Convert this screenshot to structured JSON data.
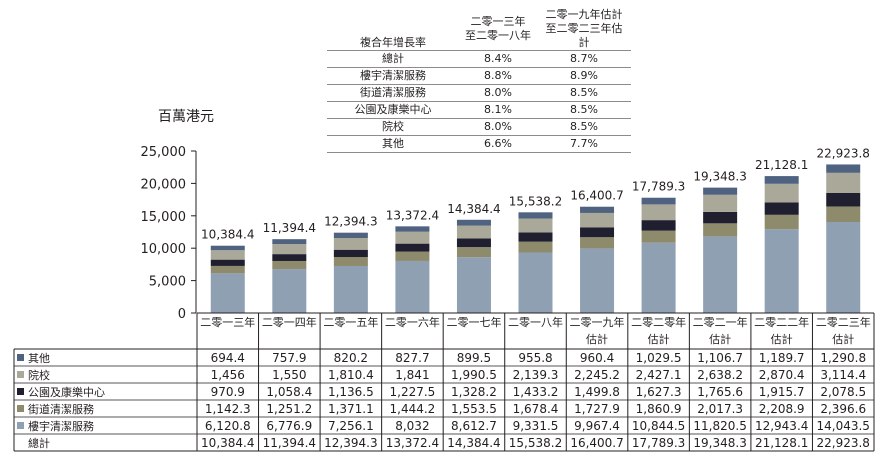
{
  "unit_label": "百萬港元",
  "cagr_table": {
    "header": {
      "label": "複合年增長率",
      "col1": [
        "二零一三年",
        "至二零一八年"
      ],
      "col2": [
        "二零一九年估計",
        "至二零二三年估計"
      ]
    },
    "rows": [
      {
        "label": "總計",
        "v1": "8.4%",
        "v2": "8.7%"
      },
      {
        "label": "樓宇清潔服務",
        "v1": "8.8%",
        "v2": "8.9%"
      },
      {
        "label": "街道清潔服務",
        "v1": "8.0%",
        "v2": "8.5%"
      },
      {
        "label": "公園及康樂中心",
        "v1": "8.1%",
        "v2": "8.5%"
      },
      {
        "label": "院校",
        "v1": "8.0%",
        "v2": "8.5%"
      },
      {
        "label": "其他",
        "v1": "6.6%",
        "v2": "7.7%"
      }
    ]
  },
  "colors": {
    "樓宇清潔服務": "#8fa0b3",
    "街道清潔服務": "#8e8a6c",
    "公園及康樂中心": "#1f1f30",
    "院校": "#aaa999",
    "其他": "#4f6280"
  },
  "chart_data": {
    "type": "bar",
    "stacked": true,
    "categories": [
      [
        "二零一三年"
      ],
      [
        "二零一四年"
      ],
      [
        "二零一五年"
      ],
      [
        "二零一六年"
      ],
      [
        "二零一七年"
      ],
      [
        "二零一八年"
      ],
      [
        "二零一九年",
        "估計"
      ],
      [
        "二零二零年",
        "估計"
      ],
      [
        "二零二一年",
        "估計"
      ],
      [
        "二零二二年",
        "估計"
      ],
      [
        "二零二三年",
        "估計"
      ]
    ],
    "ylabel": "百萬港元",
    "ylim": [
      0,
      25000
    ],
    "yticks": [
      "0",
      "5,000",
      "10,000",
      "15,000",
      "20,000",
      "25,000"
    ],
    "ytick_values": [
      0,
      5000,
      10000,
      15000,
      20000,
      25000
    ],
    "series": [
      {
        "name": "樓宇清潔服務",
        "values": [
          6120.8,
          6776.9,
          7256.1,
          8032,
          8612.7,
          9331.5,
          9967.4,
          10844.5,
          11820.5,
          12943.4,
          14043.5
        ],
        "labels": [
          "6,120.8",
          "6,776.9",
          "7,256.1",
          "8,032",
          "8,612.7",
          "9,331.5",
          "9,967.4",
          "10,844.5",
          "11,820.5",
          "12,943.4",
          "14,043.5"
        ]
      },
      {
        "name": "街道清潔服務",
        "values": [
          1142.3,
          1251.2,
          1371.1,
          1444.2,
          1553.5,
          1678.4,
          1727.9,
          1860.9,
          2017.3,
          2208.9,
          2396.6
        ],
        "labels": [
          "1,142.3",
          "1,251.2",
          "1,371.1",
          "1,444.2",
          "1,553.5",
          "1,678.4",
          "1,727.9",
          "1,860.9",
          "2,017.3",
          "2,208.9",
          "2,396.6"
        ]
      },
      {
        "name": "公園及康樂中心",
        "values": [
          970.9,
          1058.4,
          1136.5,
          1227.5,
          1328.2,
          1433.2,
          1499.8,
          1627.3,
          1765.6,
          1915.7,
          2078.5
        ],
        "labels": [
          "970.9",
          "1,058.4",
          "1,136.5",
          "1,227.5",
          "1,328.2",
          "1,433.2",
          "1,499.8",
          "1,627.3",
          "1,765.6",
          "1,915.7",
          "2,078.5"
        ]
      },
      {
        "name": "院校",
        "values": [
          1456,
          1550,
          1810.4,
          1841,
          1990.5,
          2139.3,
          2245.2,
          2427.1,
          2638.2,
          2870.4,
          3114.4
        ],
        "labels": [
          "1,456",
          "1,550",
          "1,810.4",
          "1,841",
          "1,990.5",
          "2,139.3",
          "2,245.2",
          "2,427.1",
          "2,638.2",
          "2,870.4",
          "3,114.4"
        ]
      },
      {
        "name": "其他",
        "values": [
          694.4,
          757.9,
          820.2,
          827.7,
          899.5,
          955.8,
          960.4,
          1029.5,
          1106.7,
          1189.7,
          1290.8
        ],
        "labels": [
          "694.4",
          "757.9",
          "820.2",
          "827.7",
          "899.5",
          "955.8",
          "960.4",
          "1,029.5",
          "1,106.7",
          "1,189.7",
          "1,290.8"
        ]
      }
    ],
    "totals": [
      10384.4,
      11394.4,
      12394.3,
      13372.4,
      14384.4,
      15538.2,
      16400.7,
      17789.3,
      19348.3,
      21128.1,
      22923.8
    ],
    "total_labels": [
      "10,384.4",
      "11,394.4",
      "12,394.3",
      "13,372.4",
      "14,384.4",
      "15,538.2",
      "16,400.7",
      "17,789.3",
      "19,348.3",
      "21,128.1",
      "22,923.8"
    ],
    "table_rows": [
      {
        "series": "其他",
        "label": "其他"
      },
      {
        "series": "院校",
        "label": "院校"
      },
      {
        "series": "公園及康樂中心",
        "label": "公園及康樂中心"
      },
      {
        "series": "街道清潔服務",
        "label": "街道清潔服務"
      },
      {
        "series": "樓宇清潔服務",
        "label": "樓宇清潔服務"
      }
    ],
    "total_row_label": "總計"
  }
}
